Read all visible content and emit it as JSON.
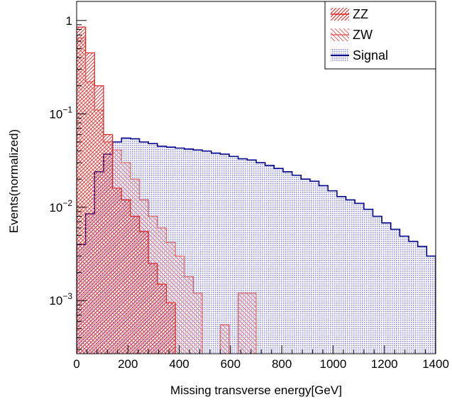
{
  "chart_data": {
    "type": "histogram",
    "title": "",
    "xlabel": "Missing transverse energy[GeV]",
    "ylabel": "Events(normalized)",
    "x_range": [
      0,
      1400
    ],
    "y_range": [
      0.00027,
      1.6
    ],
    "y_scale": "log",
    "bin_width": 35,
    "x_ticks": [
      0,
      200,
      400,
      600,
      800,
      1000,
      1200,
      1400
    ],
    "x_tick_labels": [
      "0",
      "200",
      "400",
      "600",
      "800",
      "1000",
      "1200",
      "1400"
    ],
    "y_ticks": [
      1,
      0.1,
      0.01,
      0.001
    ],
    "y_tick_labels": [
      {
        "base": "1",
        "exp": ""
      },
      {
        "base": "10",
        "exp": "−1"
      },
      {
        "base": "10",
        "exp": "−2"
      },
      {
        "base": "10",
        "exp": "−3"
      }
    ],
    "legend_position": "top-right",
    "series": [
      {
        "name": "Signal",
        "color": "#00008b",
        "fill": "#2b2bcc",
        "hatch": "dots",
        "values": [
          0.004,
          0.0085,
          0.024,
          0.037,
          0.05,
          0.055,
          0.054,
          0.05,
          0.048,
          0.045,
          0.044,
          0.043,
          0.042,
          0.041,
          0.04,
          0.038,
          0.037,
          0.035,
          0.033,
          0.032,
          0.03,
          0.028,
          0.026,
          0.024,
          0.022,
          0.02,
          0.019,
          0.017,
          0.015,
          0.013,
          0.012,
          0.011,
          0.0095,
          0.008,
          0.0068,
          0.0058,
          0.0049,
          0.0043,
          0.0038,
          0.003
        ]
      },
      {
        "name": "ZW",
        "color": "#e06060",
        "fill": "#e06060",
        "hatch": "backslash",
        "values": [
          0.65,
          0.22,
          0.11,
          0.05,
          0.041,
          0.03,
          0.02,
          0.012,
          0.008,
          0.006,
          0.0042,
          0.003,
          0.0018,
          0.0012,
          0.0,
          0.0,
          0.00055,
          0.0,
          0.0012,
          0.0012,
          0.0,
          0.0,
          0.0,
          0.0,
          0.0,
          0.0,
          0.0,
          0.0,
          0.0,
          0.0,
          0.0,
          0.0,
          0.0,
          0.0,
          0.0,
          0.0,
          0.0,
          0.0,
          0.0,
          0.0
        ]
      },
      {
        "name": "ZZ",
        "color": "#dd2222",
        "fill": "#dd2222",
        "hatch": "slash",
        "values": [
          0.85,
          0.45,
          0.2,
          0.06,
          0.016,
          0.012,
          0.008,
          0.0055,
          0.0025,
          0.0015,
          0.00095,
          0.0,
          0.0,
          0.0,
          0.0,
          0.0,
          0.0,
          0.0,
          0.0,
          0.0,
          0.0,
          0.0,
          0.0,
          0.0,
          0.0,
          0.0,
          0.0,
          0.0,
          0.0,
          0.0,
          0.0,
          0.0,
          0.0,
          0.0,
          0.0,
          0.0,
          0.0,
          0.0,
          0.0,
          0.0
        ]
      }
    ],
    "legend_order": [
      "ZZ",
      "ZW",
      "Signal"
    ]
  }
}
